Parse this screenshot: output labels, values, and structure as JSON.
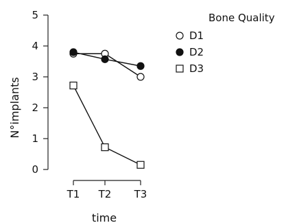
{
  "chart_data": {
    "type": "line",
    "categories": [
      "T1",
      "T2",
      "T3"
    ],
    "series": [
      {
        "name": "D1",
        "marker": "open-circle",
        "values": [
          3.75,
          3.75,
          3.0
        ]
      },
      {
        "name": "D2",
        "marker": "filled-circle",
        "values": [
          3.8,
          3.57,
          3.35
        ]
      },
      {
        "name": "D3",
        "marker": "open-square",
        "values": [
          2.72,
          0.72,
          0.15
        ]
      }
    ],
    "xlabel": "time",
    "ylabel": "N°implants",
    "ylim": [
      0,
      5
    ],
    "yticks": [
      0,
      1,
      2,
      3,
      4,
      5
    ],
    "legend_title": "Bone Quality",
    "legend_position": "top-right",
    "grid": false
  }
}
